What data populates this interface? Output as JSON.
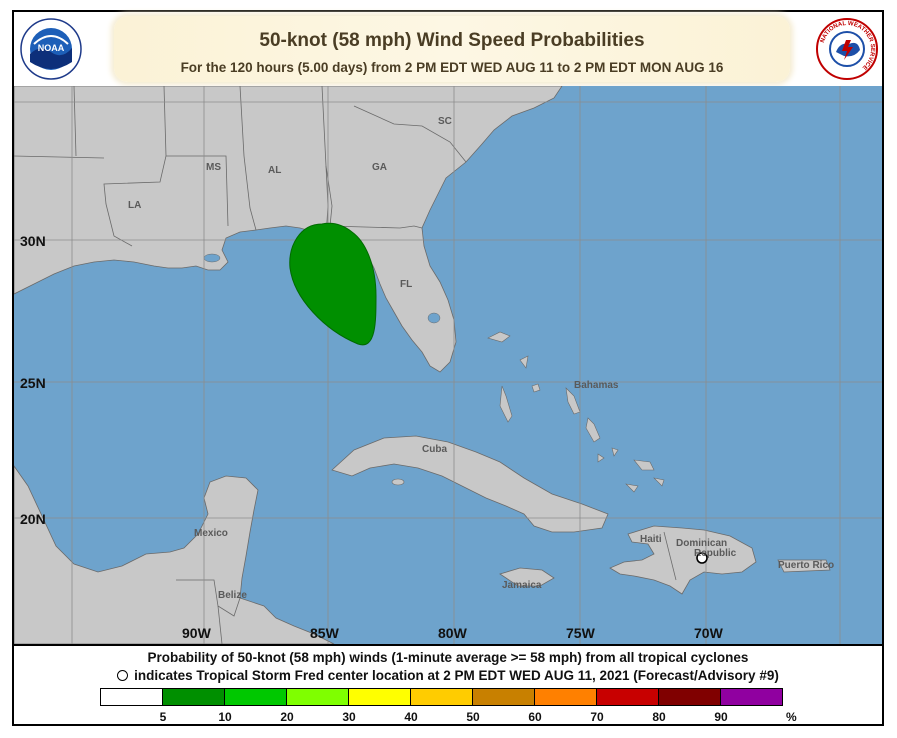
{
  "header": {
    "title": "50-knot (58 mph) Wind Speed Probabilities",
    "subtitle": "For the 120 hours (5.00 days) from 2 PM EDT WED AUG 11 to 2 PM EDT MON AUG 16",
    "left_logo_text": "NOAA",
    "right_logo_text": "NATIONAL WEATHER SERVICE"
  },
  "map": {
    "latitude_labels": [
      "30N",
      "25N",
      "20N"
    ],
    "longitude_labels": [
      "90W",
      "85W",
      "80W",
      "75W",
      "70W"
    ],
    "place_labels": {
      "sc": "SC",
      "ms": "MS",
      "al": "AL",
      "ga": "GA",
      "la": "LA",
      "fl": "FL",
      "bahamas": "Bahamas",
      "cuba": "Cuba",
      "mexico": "Mexico",
      "belize": "Belize",
      "haiti": "Haiti",
      "dominican_republic_1": "Dominican",
      "dominican_republic_2": "Republic",
      "jamaica": "Jamaica",
      "puerto_rico": "Puerto Rico"
    },
    "colors": {
      "ocean": "#6ea3cc",
      "land": "#c8c8c8",
      "border": "#6a6a6a",
      "grid": "#8c8c8c",
      "probability_area": "#008f00"
    },
    "probability_area": {
      "category": "5-10%",
      "center_lat": 28.0,
      "center_lon": -85.4
    },
    "storm_center": {
      "name": "Tropical Storm Fred",
      "lat": 18.6,
      "lon": -70.3
    }
  },
  "footer": {
    "line1": "Probability of 50-knot (58 mph) winds (1-minute average >= 58 mph) from all tropical cyclones",
    "line2": "indicates Tropical Storm Fred center location at 2 PM EDT WED AUG 11, 2021 (Forecast/Advisory #9)"
  },
  "legend": {
    "colors": [
      "#ffffff",
      "#008f00",
      "#00c800",
      "#7fff00",
      "#ffff00",
      "#ffcc00",
      "#c88000",
      "#ff8000",
      "#c80000",
      "#800000",
      "#9000a0"
    ],
    "ticks": [
      "5",
      "10",
      "20",
      "30",
      "40",
      "50",
      "60",
      "70",
      "80",
      "90"
    ],
    "unit": "%"
  }
}
